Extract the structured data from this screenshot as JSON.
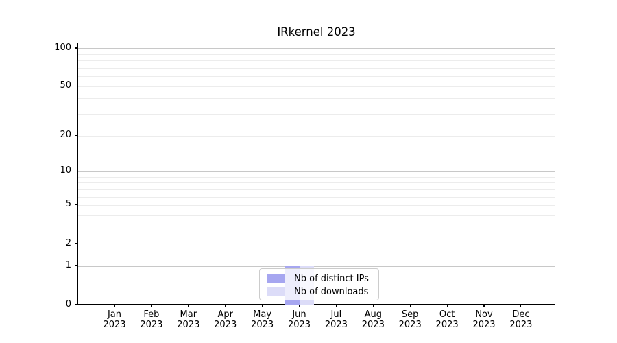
{
  "chart_data": {
    "type": "bar",
    "title": "IRkernel 2023",
    "year": "2023",
    "categories": [
      "Jan",
      "Feb",
      "Mar",
      "Apr",
      "May",
      "Jun",
      "Jul",
      "Aug",
      "Sep",
      "Oct",
      "Nov",
      "Dec"
    ],
    "series": [
      {
        "name": "Nb of distinct IPs",
        "color": "#a6a6f0",
        "values": [
          0,
          0,
          0,
          0,
          0,
          1,
          0,
          0,
          0,
          0,
          0,
          0
        ]
      },
      {
        "name": "Nb of downloads",
        "color": "#dcdcf8",
        "values": [
          0,
          0,
          0,
          0,
          0,
          1,
          0,
          0,
          0,
          0,
          0,
          0
        ]
      }
    ],
    "yscale": "log1p",
    "ylim": [
      0,
      110
    ],
    "y_tick_values": [
      0,
      1,
      2,
      5,
      10,
      20,
      50,
      100
    ],
    "y_tick_labels": [
      "0",
      "1",
      "2",
      "5",
      "10",
      "20",
      "50",
      "100"
    ],
    "grid_major_values": [
      1,
      10,
      100
    ],
    "grid_minor_values": [
      2,
      3,
      4,
      5,
      6,
      7,
      8,
      9,
      20,
      30,
      40,
      50,
      60,
      70,
      80,
      90
    ],
    "grid_major_color": "#c8c8c8",
    "grid_minor_color": "#ececec",
    "legend_position": "lower center",
    "grid": "on"
  }
}
